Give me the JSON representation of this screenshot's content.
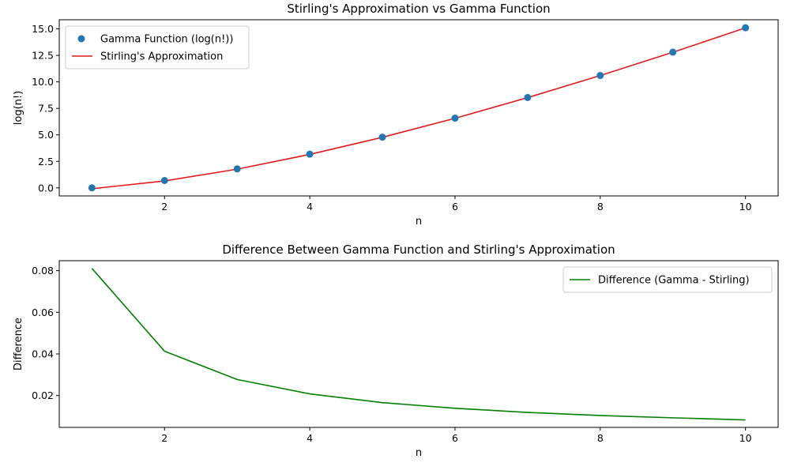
{
  "chart_data": [
    {
      "type": "scatter",
      "title": "Stirling's Approximation vs Gamma Function",
      "xlabel": "n",
      "ylabel": "log(n!)",
      "xlim": [
        0.55,
        10.45
      ],
      "ylim": [
        -0.76,
        15.86
      ],
      "xticks": [
        2,
        4,
        6,
        8,
        10
      ],
      "yticks": [
        0.0,
        2.5,
        5.0,
        7.5,
        10.0,
        12.5,
        15.0
      ],
      "ytick_labels": [
        "0.0",
        "2.5",
        "5.0",
        "7.5",
        "10.0",
        "12.5",
        "15.0"
      ],
      "grid": false,
      "legend_position": "top-left",
      "series": [
        {
          "name": "Gamma Function (log(n!))",
          "kind": "scatter",
          "color": "#1f77b4",
          "x": [
            1,
            2,
            3,
            4,
            5,
            6,
            7,
            8,
            9,
            10
          ],
          "y": [
            0.0,
            0.693,
            1.792,
            3.178,
            4.787,
            6.579,
            8.525,
            10.605,
            12.802,
            15.104
          ]
        },
        {
          "name": "Stirling's Approximation",
          "kind": "line",
          "color": "#e41a1c",
          "x": [
            1,
            2,
            3,
            4,
            5,
            6,
            7,
            8,
            9,
            10
          ],
          "y": [
            -0.081,
            0.652,
            1.764,
            3.157,
            4.771,
            6.565,
            8.513,
            10.594,
            12.792,
            15.096
          ]
        }
      ]
    },
    {
      "type": "line",
      "title": "Difference Between Gamma Function and Stirling's Approximation",
      "xlabel": "n",
      "ylabel": "Difference",
      "xlim": [
        0.55,
        10.45
      ],
      "ylim": [
        0.0047,
        0.0848
      ],
      "xticks": [
        2,
        4,
        6,
        8,
        10
      ],
      "yticks": [
        0.02,
        0.04,
        0.06,
        0.08
      ],
      "ytick_labels": [
        "0.02",
        "0.04",
        "0.06",
        "0.08"
      ],
      "grid": false,
      "legend_position": "top-right",
      "series": [
        {
          "name": "Difference (Gamma - Stirling)",
          "kind": "line",
          "color": "#008000",
          "x": [
            1,
            2,
            3,
            4,
            5,
            6,
            7,
            8,
            9,
            10
          ],
          "y": [
            0.0811,
            0.0413,
            0.0277,
            0.0208,
            0.0166,
            0.0139,
            0.0119,
            0.0104,
            0.0093,
            0.0083
          ]
        }
      ]
    }
  ]
}
